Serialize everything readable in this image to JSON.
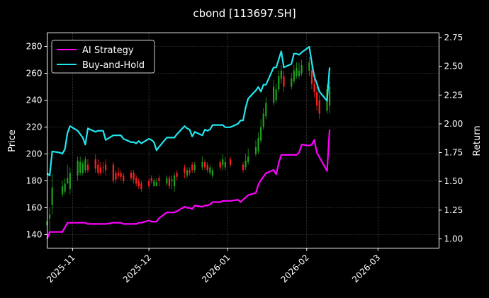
{
  "chart_data": {
    "type": "line",
    "title": "cbond [113697.SH]",
    "ylabel": "Price",
    "y2label": "Return",
    "legend_position": "upper-left",
    "grid": true,
    "x_ticks": [
      "2025-11",
      "2025-12",
      "2026-01",
      "2026-02",
      "2026-03"
    ],
    "x_range": [
      "2025-10-22",
      "2026-03-25"
    ],
    "price_ticks": [
      140,
      160,
      180,
      200,
      220,
      240,
      260,
      280
    ],
    "price_range": [
      130,
      290
    ],
    "return_ticks": [
      1.0,
      1.25,
      1.5,
      1.75,
      2.0,
      2.25,
      2.5,
      2.75
    ],
    "return_tick_labels": [
      "1.00",
      "1.25",
      "1.50",
      "1.75",
      "2.00",
      "2.25",
      "2.50",
      "2.75"
    ],
    "return_range": [
      0.92,
      2.79
    ],
    "series": [
      {
        "name": "AI Strategy",
        "color": "#ff00ff",
        "axis": "return",
        "points": [
          [
            "2025-10-22",
            1.0
          ],
          [
            "2025-10-23",
            1.06
          ],
          [
            "2025-10-24",
            1.06
          ],
          [
            "2025-10-27",
            1.06
          ],
          [
            "2025-10-28",
            1.06
          ],
          [
            "2025-10-29",
            1.1
          ],
          [
            "2025-10-30",
            1.14
          ],
          [
            "2025-10-31",
            1.14
          ],
          [
            "2025-11-03",
            1.14
          ],
          [
            "2025-11-04",
            1.14
          ],
          [
            "2025-11-05",
            1.14
          ],
          [
            "2025-11-06",
            1.14
          ],
          [
            "2025-11-07",
            1.13
          ],
          [
            "2025-11-10",
            1.13
          ],
          [
            "2025-11-11",
            1.13
          ],
          [
            "2025-11-12",
            1.13
          ],
          [
            "2025-11-13",
            1.13
          ],
          [
            "2025-11-14",
            1.13
          ],
          [
            "2025-11-17",
            1.14
          ],
          [
            "2025-11-18",
            1.14
          ],
          [
            "2025-11-19",
            1.14
          ],
          [
            "2025-11-20",
            1.14
          ],
          [
            "2025-11-21",
            1.13
          ],
          [
            "2025-11-24",
            1.13
          ],
          [
            "2025-11-25",
            1.13
          ],
          [
            "2025-11-26",
            1.13
          ],
          [
            "2025-11-27",
            1.14
          ],
          [
            "2025-11-28",
            1.14
          ],
          [
            "2025-12-01",
            1.16
          ],
          [
            "2025-12-02",
            1.15
          ],
          [
            "2025-12-03",
            1.15
          ],
          [
            "2025-12-04",
            1.15
          ],
          [
            "2025-12-05",
            1.18
          ],
          [
            "2025-12-08",
            1.23
          ],
          [
            "2025-12-09",
            1.23
          ],
          [
            "2025-12-10",
            1.23
          ],
          [
            "2025-12-11",
            1.23
          ],
          [
            "2025-12-12",
            1.24
          ],
          [
            "2025-12-15",
            1.28
          ],
          [
            "2025-12-16",
            1.27
          ],
          [
            "2025-12-17",
            1.27
          ],
          [
            "2025-12-18",
            1.26
          ],
          [
            "2025-12-19",
            1.29
          ],
          [
            "2025-12-22",
            1.28
          ],
          [
            "2025-12-23",
            1.29
          ],
          [
            "2025-12-24",
            1.29
          ],
          [
            "2025-12-25",
            1.3
          ],
          [
            "2025-12-26",
            1.32
          ],
          [
            "2025-12-29",
            1.32
          ],
          [
            "2025-12-30",
            1.33
          ],
          [
            "2025-12-31",
            1.33
          ],
          [
            "2026-01-02",
            1.33
          ],
          [
            "2026-01-05",
            1.34
          ],
          [
            "2026-01-06",
            1.32
          ],
          [
            "2026-01-07",
            1.34
          ],
          [
            "2026-01-08",
            1.36
          ],
          [
            "2026-01-09",
            1.38
          ],
          [
            "2026-01-12",
            1.4
          ],
          [
            "2026-01-13",
            1.47
          ],
          [
            "2026-01-14",
            1.51
          ],
          [
            "2026-01-15",
            1.54
          ],
          [
            "2026-01-16",
            1.57
          ],
          [
            "2026-01-19",
            1.6
          ],
          [
            "2026-01-20",
            1.56
          ],
          [
            "2026-01-21",
            1.66
          ],
          [
            "2026-01-22",
            1.73
          ],
          [
            "2026-01-23",
            1.73
          ],
          [
            "2026-01-26",
            1.73
          ],
          [
            "2026-01-27",
            1.73
          ],
          [
            "2026-01-28",
            1.73
          ],
          [
            "2026-01-29",
            1.75
          ],
          [
            "2026-01-30",
            1.82
          ],
          [
            "2026-02-02",
            1.81
          ],
          [
            "2026-02-03",
            1.82
          ],
          [
            "2026-02-04",
            1.86
          ],
          [
            "2026-02-05",
            1.75
          ],
          [
            "2026-02-06",
            1.71
          ],
          [
            "2026-02-09",
            1.59
          ],
          [
            "2026-02-10",
            1.95
          ]
        ]
      },
      {
        "name": "Buy-and-Hold",
        "color": "#22e6ee",
        "axis": "return",
        "points": [
          [
            "2025-10-22",
            1.57
          ],
          [
            "2025-10-23",
            1.55
          ],
          [
            "2025-10-24",
            1.76
          ],
          [
            "2025-10-27",
            1.75
          ],
          [
            "2025-10-28",
            1.74
          ],
          [
            "2025-10-29",
            1.78
          ],
          [
            "2025-10-30",
            1.92
          ],
          [
            "2025-10-31",
            1.98
          ],
          [
            "2025-11-03",
            1.94
          ],
          [
            "2025-11-04",
            1.91
          ],
          [
            "2025-11-05",
            1.88
          ],
          [
            "2025-11-06",
            1.82
          ],
          [
            "2025-11-07",
            1.96
          ],
          [
            "2025-11-10",
            1.93
          ],
          [
            "2025-11-11",
            1.94
          ],
          [
            "2025-11-12",
            1.94
          ],
          [
            "2025-11-13",
            1.94
          ],
          [
            "2025-11-14",
            1.86
          ],
          [
            "2025-11-17",
            1.9
          ],
          [
            "2025-11-18",
            1.9
          ],
          [
            "2025-11-19",
            1.9
          ],
          [
            "2025-11-20",
            1.9
          ],
          [
            "2025-11-21",
            1.87
          ],
          [
            "2025-11-24",
            1.84
          ],
          [
            "2025-11-25",
            1.84
          ],
          [
            "2025-11-26",
            1.83
          ],
          [
            "2025-11-27",
            1.85
          ],
          [
            "2025-11-28",
            1.83
          ],
          [
            "2025-12-01",
            1.87
          ],
          [
            "2025-12-02",
            1.86
          ],
          [
            "2025-12-03",
            1.84
          ],
          [
            "2025-12-04",
            1.77
          ],
          [
            "2025-12-05",
            1.8
          ],
          [
            "2025-12-08",
            1.88
          ],
          [
            "2025-12-09",
            1.88
          ],
          [
            "2025-12-10",
            1.88
          ],
          [
            "2025-12-11",
            1.88
          ],
          [
            "2025-12-12",
            1.91
          ],
          [
            "2025-12-15",
            1.98
          ],
          [
            "2025-12-16",
            1.96
          ],
          [
            "2025-12-17",
            1.95
          ],
          [
            "2025-12-18",
            1.89
          ],
          [
            "2025-12-19",
            1.93
          ],
          [
            "2025-12-22",
            1.9
          ],
          [
            "2025-12-23",
            1.95
          ],
          [
            "2025-12-24",
            1.94
          ],
          [
            "2025-12-25",
            1.95
          ],
          [
            "2025-12-26",
            1.99
          ],
          [
            "2025-12-29",
            1.99
          ],
          [
            "2025-12-30",
            1.99
          ],
          [
            "2025-12-31",
            1.97
          ],
          [
            "2026-01-02",
            1.97
          ],
          [
            "2026-01-05",
            2.0
          ],
          [
            "2026-01-06",
            2.03
          ],
          [
            "2026-01-07",
            2.03
          ],
          [
            "2026-01-08",
            2.14
          ],
          [
            "2026-01-09",
            2.22
          ],
          [
            "2026-01-12",
            2.29
          ],
          [
            "2026-01-13",
            2.32
          ],
          [
            "2026-01-14",
            2.28
          ],
          [
            "2026-01-15",
            2.34
          ],
          [
            "2026-01-16",
            2.34
          ],
          [
            "2026-01-19",
            2.49
          ],
          [
            "2026-01-20",
            2.49
          ],
          [
            "2026-01-21",
            2.56
          ],
          [
            "2026-01-22",
            2.63
          ],
          [
            "2026-01-23",
            2.49
          ],
          [
            "2026-01-26",
            2.52
          ],
          [
            "2026-01-27",
            2.61
          ],
          [
            "2026-01-28",
            2.61
          ],
          [
            "2026-01-29",
            2.6
          ],
          [
            "2026-01-30",
            2.62
          ],
          [
            "2026-02-02",
            2.67
          ],
          [
            "2026-02-03",
            2.53
          ],
          [
            "2026-02-04",
            2.41
          ],
          [
            "2026-02-05",
            2.35
          ],
          [
            "2026-02-06",
            2.28
          ],
          [
            "2026-02-09",
            2.2
          ],
          [
            "2026-02-10",
            2.49
          ]
        ]
      }
    ],
    "candlesticks": {
      "axis": "price",
      "up_color": "#ff2020",
      "down_color": "#1fa01f",
      "ohlc": [
        [
          "2025-10-22",
          150,
          147,
          156,
          140
        ],
        [
          "2025-10-23",
          155,
          152,
          160,
          140
        ],
        [
          "2025-10-24",
          175,
          162,
          185,
          155
        ],
        [
          "2025-10-28",
          176,
          170,
          180,
          168
        ],
        [
          "2025-10-29",
          178,
          172,
          182,
          170
        ],
        [
          "2025-10-30",
          182,
          178,
          192,
          178
        ],
        [
          "2025-10-31",
          186,
          174,
          190,
          170
        ],
        [
          "2025-11-03",
          195,
          184,
          198,
          180
        ],
        [
          "2025-11-04",
          194,
          186,
          198,
          184
        ],
        [
          "2025-11-05",
          193,
          186,
          195,
          184
        ],
        [
          "2025-11-06",
          196,
          188,
          198,
          186
        ],
        [
          "2025-11-07",
          188,
          192,
          196,
          186
        ],
        [
          "2025-11-10",
          189,
          196,
          200,
          186
        ],
        [
          "2025-11-11",
          186,
          192,
          196,
          184
        ],
        [
          "2025-11-12",
          186,
          190,
          194,
          184
        ],
        [
          "2025-11-13",
          190,
          190,
          194,
          186
        ],
        [
          "2025-11-14",
          188,
          192,
          196,
          184
        ],
        [
          "2025-11-17",
          180,
          192,
          194,
          178
        ],
        [
          "2025-11-18",
          181,
          186,
          188,
          178
        ],
        [
          "2025-11-19",
          184,
          186,
          190,
          182
        ],
        [
          "2025-11-20",
          183,
          186,
          188,
          180
        ],
        [
          "2025-11-21",
          180,
          184,
          186,
          178
        ],
        [
          "2025-11-24",
          182,
          186,
          188,
          180
        ],
        [
          "2025-11-25",
          181,
          186,
          188,
          178
        ],
        [
          "2025-11-26",
          178,
          182,
          184,
          176
        ],
        [
          "2025-11-27",
          176,
          180,
          182,
          174
        ],
        [
          "2025-11-28",
          174,
          178,
          180,
          172
        ],
        [
          "2025-12-01",
          176,
          180,
          182,
          174
        ],
        [
          "2025-12-02",
          180,
          182,
          184,
          178
        ],
        [
          "2025-12-03",
          180,
          176,
          182,
          176
        ],
        [
          "2025-12-04",
          179,
          176,
          182,
          176
        ],
        [
          "2025-12-05",
          180,
          182,
          184,
          176
        ],
        [
          "2025-12-08",
          182,
          178,
          184,
          176
        ],
        [
          "2025-12-09",
          176,
          182,
          184,
          174
        ],
        [
          "2025-12-10",
          181,
          180,
          184,
          174
        ],
        [
          "2025-12-11",
          184,
          176,
          186,
          172
        ],
        [
          "2025-12-12",
          183,
          186,
          188,
          180
        ],
        [
          "2025-12-15",
          186,
          190,
          192,
          182
        ],
        [
          "2025-12-16",
          188,
          184,
          190,
          182
        ],
        [
          "2025-12-17",
          186,
          188,
          190,
          184
        ],
        [
          "2025-12-18",
          188,
          192,
          194,
          186
        ],
        [
          "2025-12-19",
          192,
          188,
          194,
          186
        ],
        [
          "2025-12-22",
          194,
          190,
          198,
          188
        ],
        [
          "2025-12-23",
          190,
          194,
          196,
          188
        ],
        [
          "2025-12-24",
          188,
          192,
          194,
          186
        ],
        [
          "2025-12-25",
          190,
          186,
          192,
          184
        ],
        [
          "2025-12-26",
          188,
          184,
          190,
          182
        ],
        [
          "2025-12-29",
          190,
          194,
          196,
          188
        ],
        [
          "2025-12-30",
          196,
          192,
          200,
          188
        ],
        [
          "2025-12-31",
          194,
          190,
          198,
          188
        ],
        [
          "2026-01-02",
          192,
          196,
          198,
          190
        ],
        [
          "2026-01-07",
          188,
          192,
          194,
          186
        ],
        [
          "2026-01-08",
          195,
          190,
          200,
          188
        ],
        [
          "2026-01-09",
          198,
          194,
          204,
          192
        ],
        [
          "2026-01-12",
          205,
          200,
          210,
          198
        ],
        [
          "2026-01-13",
          212,
          202,
          216,
          200
        ],
        [
          "2026-01-14",
          220,
          210,
          226,
          208
        ],
        [
          "2026-01-15",
          230,
          220,
          234,
          218
        ],
        [
          "2026-01-16",
          238,
          228,
          242,
          226
        ],
        [
          "2026-01-19",
          250,
          238,
          255,
          236
        ],
        [
          "2026-01-20",
          248,
          240,
          252,
          238
        ],
        [
          "2026-01-21",
          258,
          248,
          262,
          246
        ],
        [
          "2026-01-22",
          262,
          256,
          266,
          252
        ],
        [
          "2026-01-23",
          250,
          258,
          262,
          246
        ],
        [
          "2026-01-26",
          256,
          250,
          260,
          248
        ],
        [
          "2026-01-27",
          262,
          254,
          266,
          252
        ],
        [
          "2026-01-28",
          264,
          258,
          268,
          256
        ],
        [
          "2026-01-29",
          262,
          258,
          268,
          256
        ],
        [
          "2026-01-30",
          266,
          260,
          270,
          258
        ],
        [
          "2026-02-02",
          268,
          262,
          272,
          258
        ],
        [
          "2026-02-03",
          252,
          262,
          266,
          248
        ],
        [
          "2026-02-04",
          246,
          252,
          256,
          242
        ],
        [
          "2026-02-05",
          236,
          246,
          250,
          232
        ],
        [
          "2026-02-06",
          230,
          240,
          244,
          226
        ],
        [
          "2026-02-09",
          248,
          232,
          252,
          230
        ],
        [
          "2026-02-10",
          250,
          236,
          254,
          230
        ]
      ]
    }
  }
}
